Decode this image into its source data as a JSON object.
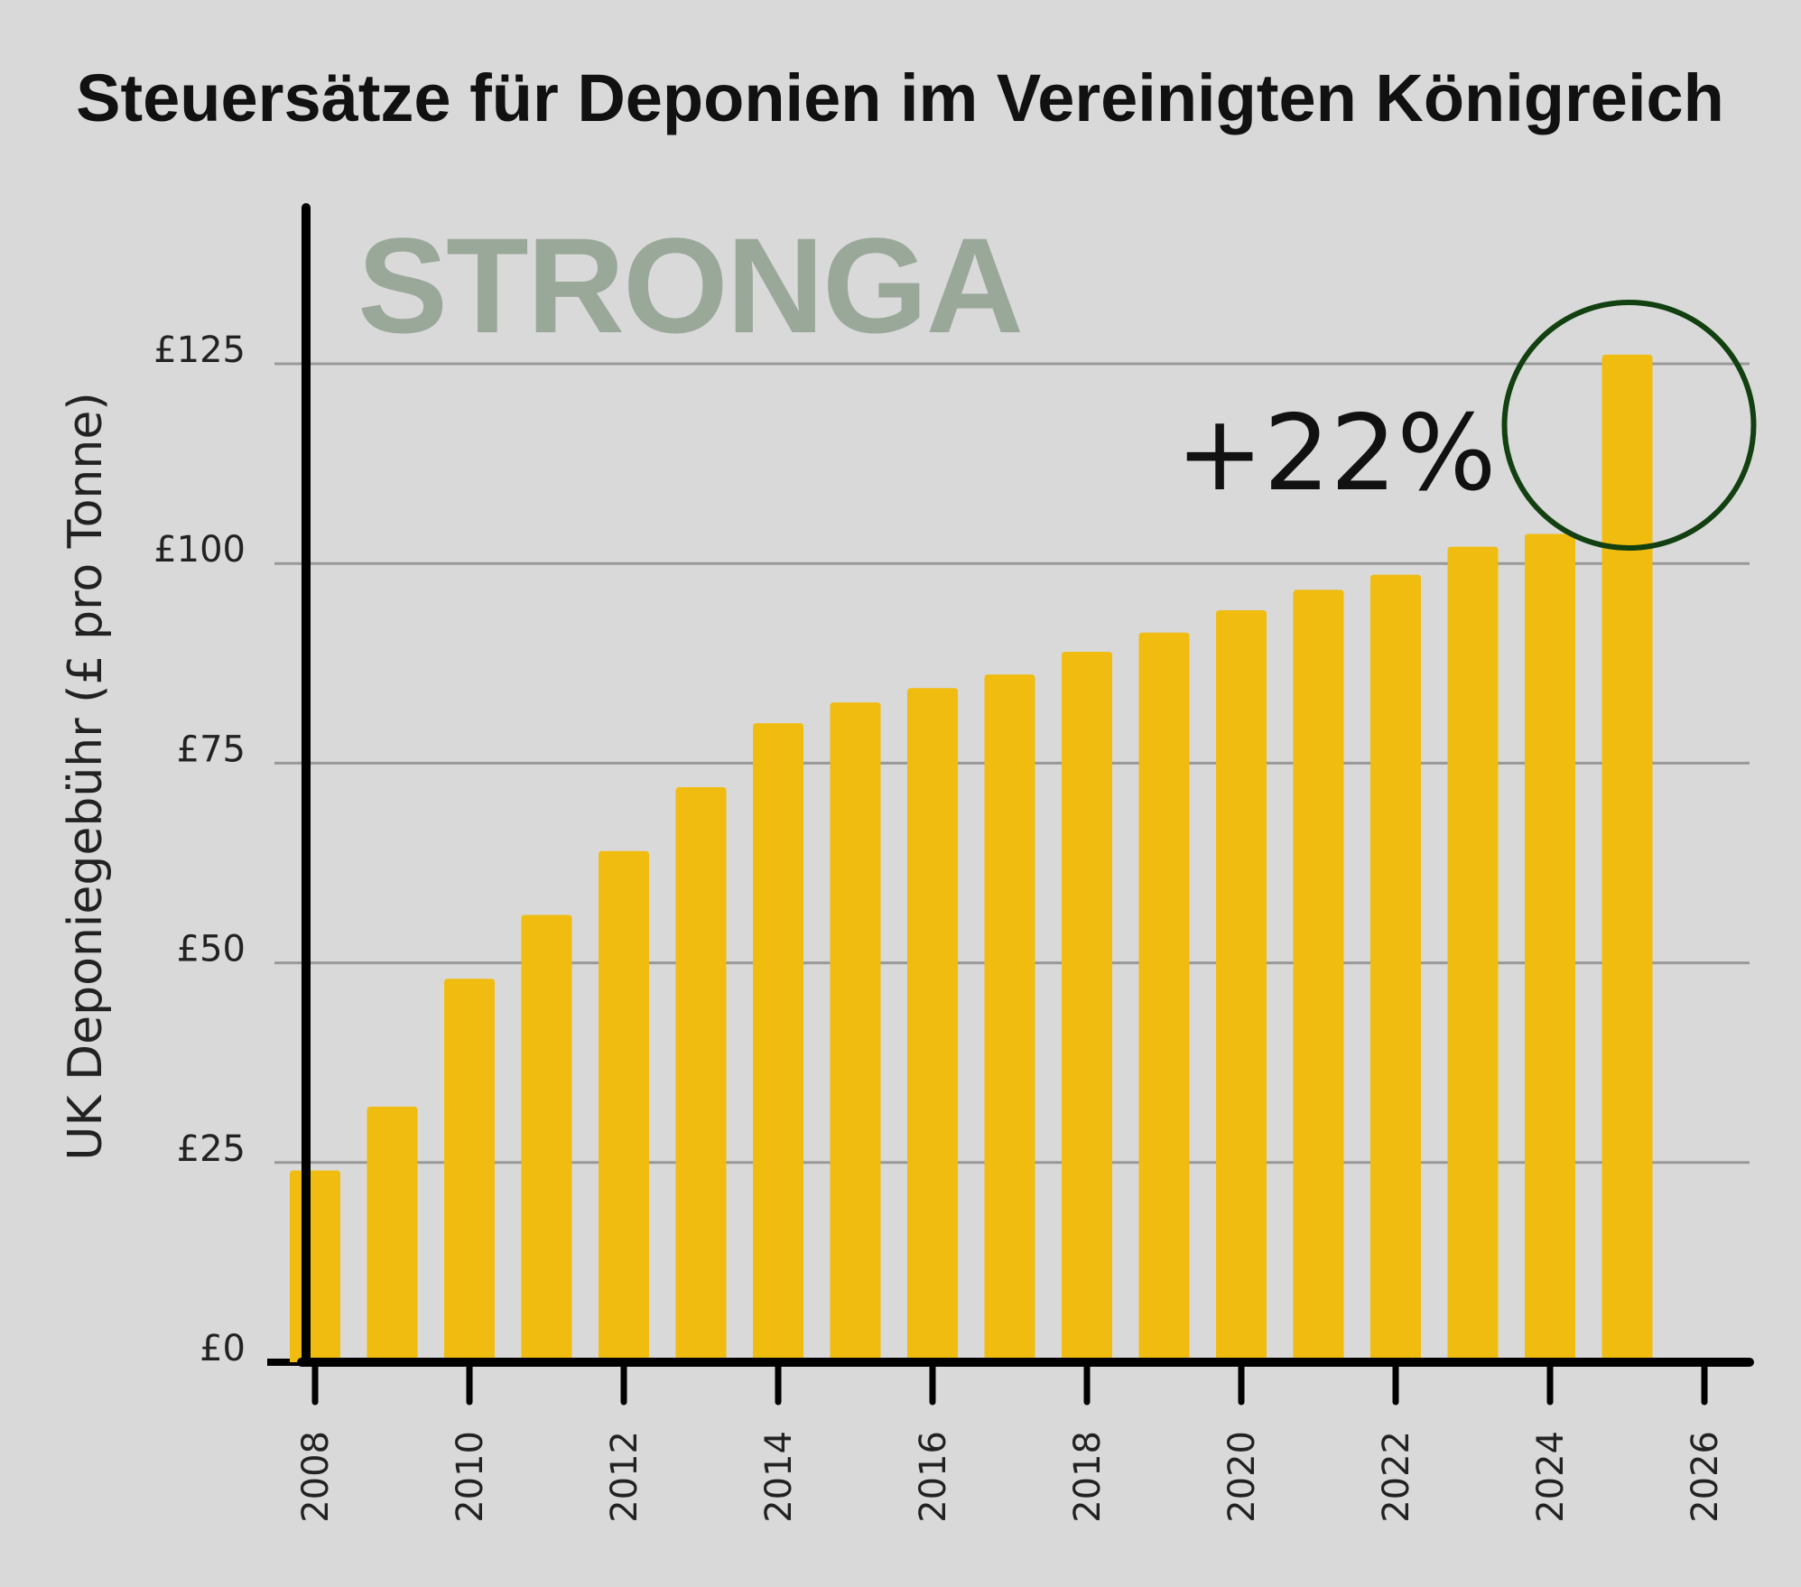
{
  "chart_data": {
    "type": "bar",
    "title": "Steuersätze für Deponien im Vereinigten Königreich",
    "ylabel": "UK Deponiegebühr (£ pro Tonne)",
    "xlabel": "",
    "watermark": "STRONGA",
    "annotation": "+22%",
    "annotation_target_year": 2025,
    "colors": {
      "bar": "#f0bc10",
      "circle": "#124010",
      "grid": "#999999",
      "axis": "#000000",
      "background": "#d9d9d9"
    },
    "ylim": [
      0,
      140
    ],
    "xlim": [
      2008,
      2026
    ],
    "yticks": [
      0,
      25,
      50,
      75,
      100,
      125
    ],
    "ytick_labels": [
      "£0",
      "£25",
      "£50",
      "£75",
      "£100",
      "£125"
    ],
    "xticks": [
      2008,
      2010,
      2012,
      2014,
      2016,
      2018,
      2020,
      2022,
      2024,
      2026
    ],
    "xtick_labels": [
      "2008",
      "2010",
      "2012",
      "2014",
      "2016",
      "2018",
      "2020",
      "2022",
      "2024",
      "2026"
    ],
    "grid": "horizontal",
    "x": [
      2008,
      2009,
      2010,
      2011,
      2012,
      2013,
      2014,
      2015,
      2016,
      2017,
      2018,
      2019,
      2020,
      2021,
      2022,
      2023,
      2024,
      2025
    ],
    "values": [
      24,
      32,
      48,
      56,
      64,
      72,
      80,
      82.6,
      84.4,
      86.1,
      88.95,
      91.35,
      94.15,
      96.7,
      98.6,
      102.1,
      103.7,
      126.15
    ]
  }
}
